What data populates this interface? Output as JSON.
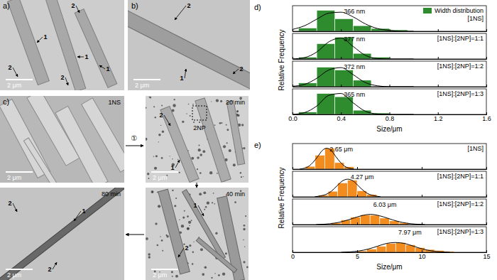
{
  "figure": {
    "micrographs": [
      {
        "label": "a)",
        "scale_bar": "2 μm",
        "markers": [
          "2",
          "1",
          "1",
          "1",
          "2",
          "2"
        ]
      },
      {
        "label": "b)",
        "scale_bar": "2 μm",
        "markers": [
          "2",
          "1",
          "2"
        ]
      },
      {
        "label": "c)",
        "caption": "1NS",
        "scale_bar": "2 μm",
        "markers": []
      },
      {
        "caption": "20 min",
        "scale_bar": "2 μm",
        "markers": [
          "2",
          "1"
        ],
        "particle_label": "2NP"
      },
      {
        "caption": "40 min",
        "scale_bar": "2 μm",
        "markers": [
          "1",
          "2"
        ]
      },
      {
        "caption": "80 min",
        "scale_bar": "2 μm",
        "markers": [
          "1",
          "2",
          "2"
        ]
      }
    ],
    "step_label": "①"
  },
  "chart_data": [
    {
      "type": "histogram",
      "panel_label": "d)",
      "ylabel": "Relative Frequency",
      "legend": "top-right",
      "sample_label": "[1NS]",
      "peak_label": "366 nm",
      "xlim": [
        0,
        1.6
      ],
      "xticks": [
        0,
        0.4,
        0.8,
        1.2,
        1.6
      ],
      "ylim": [
        0,
        0.55
      ],
      "tick_labels": false,
      "series": [
        {
          "name": "Width distribution",
          "type": "bar",
          "color": "#2e8b2e",
          "bins": [
            0.05,
            0.2,
            0.35,
            0.5,
            0.65,
            0.8,
            0.95
          ],
          "values": [
            0.07,
            0.45,
            0.27,
            0.12,
            0.06,
            0.03
          ]
        },
        {
          "type": "line",
          "color": "#000000",
          "x": [
            0,
            0.1,
            0.2,
            0.3,
            0.4,
            0.5,
            0.6,
            0.7,
            0.8,
            0.9,
            1.0
          ],
          "values": [
            0.04,
            0.12,
            0.26,
            0.39,
            0.41,
            0.31,
            0.16,
            0.06,
            0.02,
            0.0,
            0.0
          ]
        }
      ]
    },
    {
      "type": "histogram",
      "sample_label": "[1NS]:[2NP]=1:1",
      "peak_label": "377 nm",
      "xlim": [
        0,
        1.6
      ],
      "xticks": [
        0,
        0.4,
        0.8,
        1.2,
        1.6
      ],
      "ylim": [
        0,
        0.55
      ],
      "tick_labels": false,
      "series": [
        {
          "type": "bar",
          "color": "#2e8b2e",
          "bins": [
            0.05,
            0.2,
            0.35,
            0.5,
            0.65,
            0.8
          ],
          "values": [
            0.04,
            0.33,
            0.47,
            0.12,
            0.04
          ]
        },
        {
          "type": "line",
          "color": "#000000",
          "x": [
            0,
            0.1,
            0.2,
            0.3,
            0.4,
            0.5,
            0.6,
            0.7,
            0.8,
            0.9,
            1.0
          ],
          "values": [
            0.0,
            0.03,
            0.15,
            0.37,
            0.45,
            0.27,
            0.08,
            0.01,
            0.0,
            0.0,
            0.0
          ]
        }
      ]
    },
    {
      "type": "histogram",
      "sample_label": "[1NS]:[2NP]=1:2",
      "peak_label": "372 nm",
      "xlim": [
        0,
        1.6
      ],
      "xticks": [
        0,
        0.4,
        0.8,
        1.2,
        1.6
      ],
      "ylim": [
        0,
        0.55
      ],
      "tick_labels": false,
      "series": [
        {
          "type": "bar",
          "color": "#2e8b2e",
          "bins": [
            0.05,
            0.2,
            0.35,
            0.5,
            0.65
          ],
          "values": [
            0.08,
            0.42,
            0.36,
            0.14
          ]
        },
        {
          "type": "line",
          "color": "#000000",
          "x": [
            0,
            0.1,
            0.2,
            0.3,
            0.4,
            0.5,
            0.6,
            0.7,
            0.8,
            0.9,
            1.0
          ],
          "values": [
            0.01,
            0.05,
            0.18,
            0.36,
            0.41,
            0.26,
            0.09,
            0.02,
            0.0,
            0.0,
            0.0
          ]
        }
      ]
    },
    {
      "type": "histogram",
      "sample_label": "[1NS]:[2NP]=1:3",
      "peak_label": "365 nm",
      "xlabel": "Size/μm",
      "xlim": [
        0,
        1.6
      ],
      "xticks": [
        {
          "value": 0,
          "label": "0.0"
        },
        0.4,
        0.8,
        1.2,
        1.6
      ],
      "ylim": [
        0,
        0.55
      ],
      "tick_labels": "x",
      "series": [
        {
          "type": "bar",
          "color": "#2e8b2e",
          "bins": [
            0.05,
            0.2,
            0.35,
            0.5,
            0.65,
            0.8
          ],
          "values": [
            0.05,
            0.45,
            0.38,
            0.09,
            0.03
          ]
        },
        {
          "type": "line",
          "color": "#000000",
          "x": [
            0,
            0.1,
            0.2,
            0.3,
            0.4,
            0.5,
            0.6,
            0.7,
            0.8,
            0.9,
            1.0
          ],
          "values": [
            0.0,
            0.04,
            0.18,
            0.41,
            0.45,
            0.25,
            0.07,
            0.01,
            0.0,
            0.0,
            0.0
          ]
        }
      ]
    },
    {
      "type": "histogram",
      "panel_label": "e)",
      "ylabel": "Relative Frequency",
      "sample_label": "[1NS]",
      "peak_label": "2.65 μm",
      "xlim": [
        0,
        15
      ],
      "xticks": [
        0,
        5,
        10,
        15
      ],
      "ylim": [
        0,
        0.55
      ],
      "tick_labels": false,
      "series": [
        {
          "type": "bar",
          "color": "#f28c1e",
          "bins": [
            1.0,
            1.75,
            2.5,
            3.25,
            4.0,
            4.75
          ],
          "values": [
            0.06,
            0.3,
            0.45,
            0.14,
            0.05
          ]
        },
        {
          "type": "line",
          "color": "#000000",
          "x": [
            0.55,
            0.9,
            1.25,
            1.6,
            1.95,
            2.3,
            2.65,
            3.0,
            3.35,
            3.7,
            4.05,
            4.4,
            4.75
          ],
          "values": [
            0.0,
            0.02,
            0.06,
            0.15,
            0.27,
            0.4,
            0.45,
            0.4,
            0.27,
            0.15,
            0.06,
            0.02,
            0.0
          ]
        }
      ]
    },
    {
      "type": "histogram",
      "sample_label": "[1NS]:[2NP]=1:1",
      "peak_label": "4.27 μm",
      "xlim": [
        0,
        15
      ],
      "xticks": [
        0,
        5,
        10,
        15
      ],
      "ylim": [
        0,
        0.55
      ],
      "tick_labels": false,
      "series": [
        {
          "type": "bar",
          "color": "#f28c1e",
          "bins": [
            2.0,
            2.75,
            3.5,
            4.25,
            5.0,
            5.75,
            6.5
          ],
          "values": [
            0.04,
            0.12,
            0.3,
            0.36,
            0.13,
            0.05
          ]
        },
        {
          "type": "line",
          "color": "#000000",
          "x": [
            1.72,
            2.15,
            2.57,
            3.0,
            3.42,
            3.85,
            4.27,
            4.7,
            5.12,
            5.55,
            5.97,
            6.4,
            6.82
          ],
          "values": [
            0.0,
            0.02,
            0.05,
            0.12,
            0.23,
            0.34,
            0.38,
            0.34,
            0.23,
            0.12,
            0.05,
            0.02,
            0.0
          ]
        }
      ]
    },
    {
      "type": "histogram",
      "sample_label": "[1NS]:[2NP]=1:2",
      "peak_label": "6.03 μm",
      "xlim": [
        0,
        15
      ],
      "xticks": [
        0,
        5,
        10,
        15
      ],
      "ylim": [
        0,
        0.55
      ],
      "tick_labels": false,
      "series": [
        {
          "type": "bar",
          "color": "#f28c1e",
          "bins": [
            3.0,
            3.75,
            4.5,
            5.25,
            6.0,
            6.75,
            7.5,
            8.25,
            9.0
          ],
          "values": [
            0.04,
            0.1,
            0.16,
            0.21,
            0.2,
            0.14,
            0.08,
            0.04
          ]
        },
        {
          "type": "line",
          "color": "#000000",
          "x": [
            1.83,
            2.53,
            3.23,
            3.93,
            4.63,
            5.33,
            6.03,
            6.73,
            7.43,
            8.13,
            8.83,
            9.53,
            10.23
          ],
          "values": [
            0.0,
            0.01,
            0.03,
            0.07,
            0.13,
            0.19,
            0.22,
            0.19,
            0.13,
            0.07,
            0.03,
            0.01,
            0.0
          ]
        }
      ]
    },
    {
      "type": "histogram",
      "sample_label": "[1NS]:[2NP]=1:3",
      "peak_label": "7.97 μm",
      "xlabel": "Size/μm",
      "xlim": [
        0,
        15
      ],
      "xticks": [
        0,
        5,
        10,
        15
      ],
      "ylim": [
        0,
        0.55
      ],
      "tick_labels": "x",
      "series": [
        {
          "type": "bar",
          "color": "#f28c1e",
          "bins": [
            5.0,
            5.75,
            6.5,
            7.25,
            8.0,
            8.75,
            9.5,
            10.25,
            11.0,
            11.75,
            12.5
          ],
          "values": [
            0.03,
            0.07,
            0.13,
            0.19,
            0.21,
            0.16,
            0.1,
            0.06,
            0.04,
            0.02
          ]
        },
        {
          "type": "line",
          "color": "#000000",
          "x": [
            3.77,
            4.47,
            5.17,
            5.87,
            6.57,
            7.27,
            7.97,
            8.67,
            9.37,
            10.07,
            10.77,
            11.47,
            12.17
          ],
          "values": [
            0.0,
            0.01,
            0.03,
            0.07,
            0.13,
            0.19,
            0.21,
            0.19,
            0.13,
            0.07,
            0.03,
            0.01,
            0.0
          ]
        }
      ]
    }
  ]
}
